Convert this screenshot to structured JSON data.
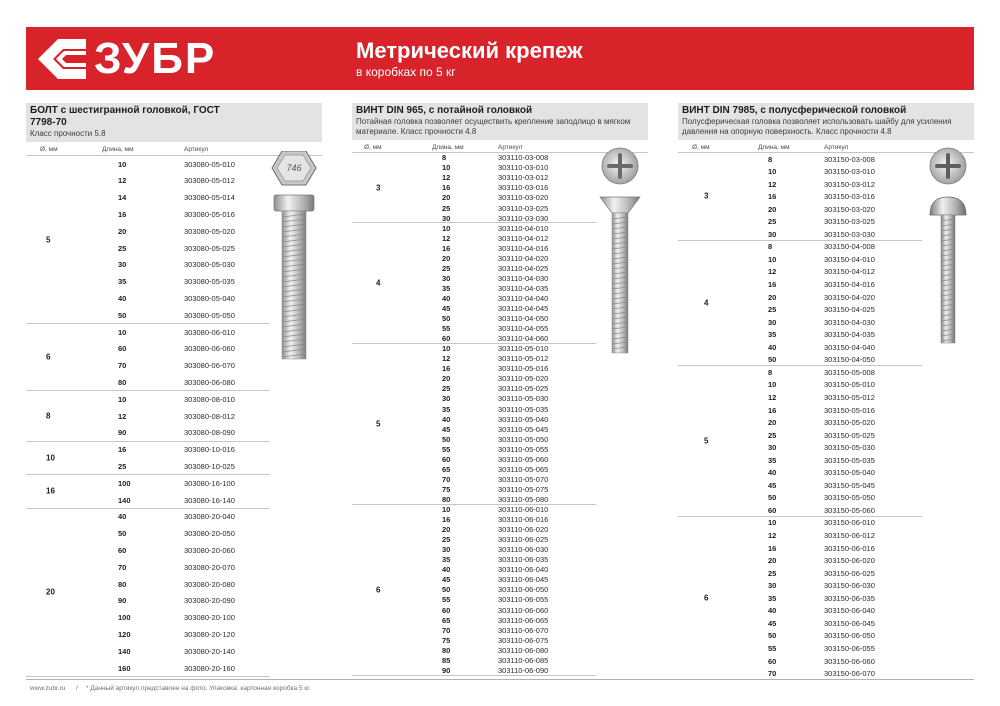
{
  "header": {
    "brand": "ЗУБР",
    "title": "Метрический крепеж",
    "subtitle": "в коробках по 5 кг",
    "accent": "#d8232a"
  },
  "bolt": {
    "title": "БОЛТ с шестигранной головкой, ГОСТ 7798-70",
    "desc": "Класс прочности 5.8",
    "col_d": "Ø, мм",
    "col_len": "Длина, мм",
    "col_art": "Артикул",
    "head_mark": "746",
    "groups": [
      {
        "d": "5",
        "rows": [
          [
            "10",
            "303080-05-010"
          ],
          [
            "12",
            "303080-05-012"
          ],
          [
            "14",
            "303080-05-014"
          ],
          [
            "16",
            "303080-05-016"
          ],
          [
            "20",
            "303080-05-020"
          ],
          [
            "25",
            "303080-05-025"
          ],
          [
            "30",
            "303080-05-030"
          ],
          [
            "35",
            "303080-05-035"
          ],
          [
            "40",
            "303080-05-040"
          ],
          [
            "50",
            "303080-05-050"
          ]
        ]
      },
      {
        "d": "6",
        "rows": [
          [
            "10",
            "303080-06-010"
          ],
          [
            "60",
            "303080-06-060"
          ],
          [
            "70",
            "303080-06-070"
          ],
          [
            "80",
            "303080-06-080"
          ]
        ]
      },
      {
        "d": "8",
        "rows": [
          [
            "10",
            "303080-08-010"
          ],
          [
            "12",
            "303080-08-012"
          ],
          [
            "90",
            "303080-08-090"
          ]
        ]
      },
      {
        "d": "10",
        "rows": [
          [
            "16",
            "303080-10-016"
          ],
          [
            "25",
            "303080-10-025"
          ]
        ]
      },
      {
        "d": "16",
        "rows": [
          [
            "100",
            "303080-16-100"
          ],
          [
            "140",
            "303080-16-140"
          ]
        ]
      },
      {
        "d": "20",
        "rows": [
          [
            "40",
            "303080-20-040"
          ],
          [
            "50",
            "303080-20-050"
          ],
          [
            "60",
            "303080-20-060"
          ],
          [
            "70",
            "303080-20-070"
          ],
          [
            "80",
            "303080-20-080"
          ],
          [
            "90",
            "303080-20-090"
          ],
          [
            "100",
            "303080-20-100"
          ],
          [
            "120",
            "303080-20-120"
          ],
          [
            "140",
            "303080-20-140"
          ],
          [
            "160",
            "303080-20-160"
          ]
        ]
      }
    ]
  },
  "din965": {
    "title": "ВИНТ DIN 965, с потайной головкой",
    "desc": "Потайная головка позволяет осуществить крепление заподлицо в мягком материале. Класс прочности 4.8",
    "col_d": "Ø, мм",
    "col_len": "Длина, мм",
    "col_art": "Артикул",
    "groups": [
      {
        "d": "3",
        "rows": [
          [
            "8",
            "303110-03-008"
          ],
          [
            "10",
            "303110-03-010"
          ],
          [
            "12",
            "303110-03-012"
          ],
          [
            "16",
            "303110-03-016"
          ],
          [
            "20",
            "303110-03-020"
          ],
          [
            "25",
            "303110-03-025"
          ],
          [
            "30",
            "303110-03-030"
          ]
        ]
      },
      {
        "d": "4",
        "rows": [
          [
            "10",
            "303110-04-010"
          ],
          [
            "12",
            "303110-04-012"
          ],
          [
            "16",
            "303110-04-016"
          ],
          [
            "20",
            "303110-04-020"
          ],
          [
            "25",
            "303110-04-025"
          ],
          [
            "30",
            "303110-04-030"
          ],
          [
            "35",
            "303110-04-035"
          ],
          [
            "40",
            "303110-04-040"
          ],
          [
            "45",
            "303110-04-045"
          ],
          [
            "50",
            "303110-04-050"
          ],
          [
            "55",
            "303110-04-055"
          ],
          [
            "60",
            "303110-04-060"
          ]
        ]
      },
      {
        "d": "5",
        "rows": [
          [
            "10",
            "303110-05-010"
          ],
          [
            "12",
            "303110-05-012"
          ],
          [
            "16",
            "303110-05-016"
          ],
          [
            "20",
            "303110-05-020"
          ],
          [
            "25",
            "303110-05-025"
          ],
          [
            "30",
            "303110-05-030"
          ],
          [
            "35",
            "303110-05-035"
          ],
          [
            "40",
            "303110-05-040"
          ],
          [
            "45",
            "303110-05-045"
          ],
          [
            "50",
            "303110-05-050"
          ],
          [
            "55",
            "303110-05-055"
          ],
          [
            "60",
            "303110-05-060"
          ],
          [
            "65",
            "303110-05-065"
          ],
          [
            "70",
            "303110-05-070"
          ],
          [
            "75",
            "303110-05-075"
          ],
          [
            "80",
            "303110-05-080"
          ]
        ]
      },
      {
        "d": "6",
        "rows": [
          [
            "10",
            "303110-06-010"
          ],
          [
            "16",
            "303110-06-016"
          ],
          [
            "20",
            "303110-06-020"
          ],
          [
            "25",
            "303110-06-025"
          ],
          [
            "30",
            "303110-06-030"
          ],
          [
            "35",
            "303110-06-035"
          ],
          [
            "40",
            "303110-06-040"
          ],
          [
            "45",
            "303110-06-045"
          ],
          [
            "50",
            "303110-06-050"
          ],
          [
            "55",
            "303110-06-055"
          ],
          [
            "60",
            "303110-06-060"
          ],
          [
            "65",
            "303110-06-065"
          ],
          [
            "70",
            "303110-06-070"
          ],
          [
            "75",
            "303110-06-075"
          ],
          [
            "80",
            "303110-06-080"
          ],
          [
            "85",
            "303110-06-085"
          ],
          [
            "90",
            "303110-06-090"
          ]
        ]
      }
    ]
  },
  "din7985": {
    "title": "ВИНТ DIN 7985, с полусферической головкой",
    "desc": "Полусферическая головка позволяет использовать шайбу для усиления давления на опорную поверхность. Класс прочности 4.8",
    "col_d": "Ø, мм",
    "col_len": "Длина, мм",
    "col_art": "Артикул",
    "groups": [
      {
        "d": "3",
        "rows": [
          [
            "8",
            "303150-03-008"
          ],
          [
            "10",
            "303150-03-010"
          ],
          [
            "12",
            "303150-03-012"
          ],
          [
            "16",
            "303150-03-016"
          ],
          [
            "20",
            "303150-03-020"
          ],
          [
            "25",
            "303150-03-025"
          ],
          [
            "30",
            "303150-03-030"
          ]
        ]
      },
      {
        "d": "4",
        "rows": [
          [
            "8",
            "303150-04-008"
          ],
          [
            "10",
            "303150-04-010"
          ],
          [
            "12",
            "303150-04-012"
          ],
          [
            "16",
            "303150-04-016"
          ],
          [
            "20",
            "303150-04-020"
          ],
          [
            "25",
            "303150-04-025"
          ],
          [
            "30",
            "303150-04-030"
          ],
          [
            "35",
            "303150-04-035"
          ],
          [
            "40",
            "303150-04-040"
          ],
          [
            "50",
            "303150-04-050"
          ]
        ]
      },
      {
        "d": "5",
        "rows": [
          [
            "8",
            "303150-05-008"
          ],
          [
            "10",
            "303150-05-010"
          ],
          [
            "12",
            "303150-05-012"
          ],
          [
            "16",
            "303150-05-016"
          ],
          [
            "20",
            "303150-05-020"
          ],
          [
            "25",
            "303150-05-025"
          ],
          [
            "30",
            "303150-05-030"
          ],
          [
            "35",
            "303150-05-035"
          ],
          [
            "40",
            "303150-05-040"
          ],
          [
            "45",
            "303150-05-045"
          ],
          [
            "50",
            "303150-05-050"
          ],
          [
            "60",
            "303150-05-060"
          ]
        ]
      },
      {
        "d": "6",
        "rows": [
          [
            "10",
            "303150-06-010"
          ],
          [
            "12",
            "303150-06-012"
          ],
          [
            "16",
            "303150-06-016"
          ],
          [
            "20",
            "303150-06-020"
          ],
          [
            "25",
            "303150-06-025"
          ],
          [
            "30",
            "303150-06-030"
          ],
          [
            "35",
            "303150-06-035"
          ],
          [
            "40",
            "303150-06-040"
          ],
          [
            "45",
            "303150-06-045"
          ],
          [
            "50",
            "303150-06-050"
          ],
          [
            "55",
            "303150-06-055"
          ],
          [
            "60",
            "303150-06-060"
          ],
          [
            "70",
            "303150-06-070"
          ]
        ]
      }
    ]
  },
  "footer": {
    "site": "www.zubr.ru",
    "separator": "/",
    "note": "* Данный артикул представлен на фото. Упаковка: картонная коробка 5 кг."
  }
}
